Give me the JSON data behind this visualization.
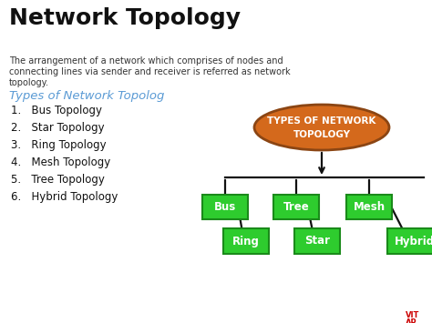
{
  "title": "Network Topology",
  "desc_line1": "The arrangement of a network which comprises of nodes and",
  "desc_line2": "connecting lines via sender and receiver is referred as network",
  "desc_line3": "topology.",
  "types_heading": "Types of Network Topolog",
  "list_items": [
    "1.   Bus Topology",
    "2.   Star Topology",
    "3.   Ring Topology",
    "4.   Mesh Topology",
    "5.   Tree Topology",
    "6.   Hybrid Topology"
  ],
  "diagram_title_line1": "TYPES OF NETWORK",
  "diagram_title_line2": "TOPOLOGY",
  "ellipse_color": "#D4691C",
  "ellipse_border": "#8B4513",
  "box_color": "#2ECC2E",
  "box_border": "#1A8A1A",
  "box_text_color": "#FFFFFF",
  "top_boxes": [
    "Bus",
    "Tree",
    "Mesh"
  ],
  "bottom_boxes": [
    "Ring",
    "Star",
    "Hybrid"
  ],
  "bg_color": "#FFFFFF",
  "title_color": "#111111",
  "types_heading_color": "#5B9BD5",
  "list_color": "#111111",
  "line_color": "#111111",
  "vit_color": "#CC0000",
  "figw": 4.74,
  "figh": 3.55,
  "dpi": 100
}
